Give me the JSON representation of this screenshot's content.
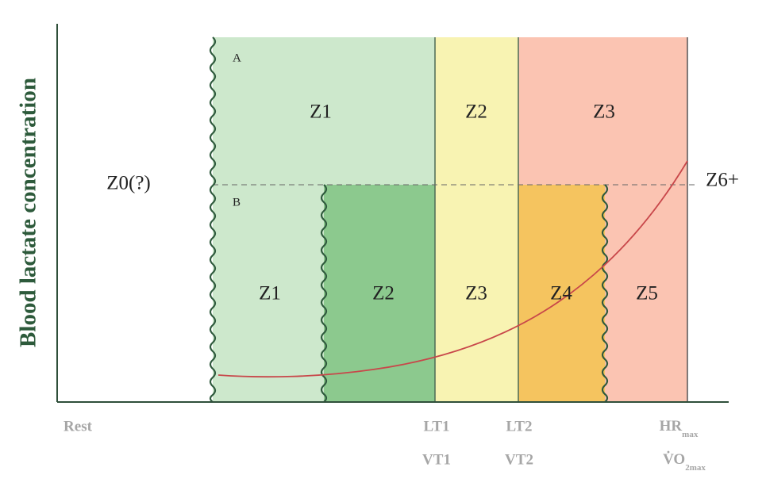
{
  "y_axis_label": "Blood lactate concentration",
  "zones_upper": {
    "marker": "A",
    "labels": [
      "Z1",
      "Z2",
      "Z3"
    ]
  },
  "zones_lower": {
    "marker": "B",
    "labels": [
      "Z1",
      "Z2",
      "Z3",
      "Z4",
      "Z5"
    ]
  },
  "left_label": "Z0(?)",
  "right_label": "Z6+",
  "x_markers": [
    {
      "label": "Rest"
    },
    {
      "label": "LT1",
      "alt": "VT1"
    },
    {
      "label": "LT2",
      "alt": "VT2"
    },
    {
      "label": "HR",
      "label_sub": "max",
      "alt": "V̇O",
      "alt_sub": "2max"
    }
  ]
}
